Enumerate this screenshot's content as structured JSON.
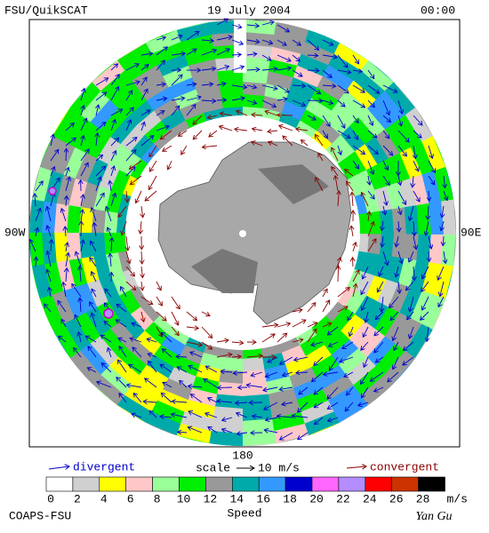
{
  "header": {
    "left": "FSU/QuikSCAT",
    "center": "19 July 2004",
    "right": "00:00"
  },
  "map": {
    "west_label": "90W",
    "east_label": "90E",
    "bottom_label": "180"
  },
  "legend": {
    "divergent": "divergent",
    "scale": "scale",
    "scale_value": "10 m/s",
    "convergent": "convergent"
  },
  "colorbar": {
    "ticks": [
      "0",
      "2",
      "4",
      "6",
      "8",
      "10",
      "12",
      "14",
      "16",
      "18",
      "20",
      "22",
      "24",
      "26",
      "28"
    ],
    "colors": [
      "#ffffff",
      "#d0d0d0",
      "#ffff00",
      "#ffc8c8",
      "#99ff99",
      "#00ee00",
      "#999999",
      "#00aaaa",
      "#3399ff",
      "#0000cc",
      "#ff66ff",
      "#b38cff",
      "#ff0000",
      "#cc3300",
      "#000000"
    ],
    "unit": "m/s",
    "label": "Speed"
  },
  "footer": {
    "left": "COAPS-FSU",
    "right": "Yan Gu"
  }
}
